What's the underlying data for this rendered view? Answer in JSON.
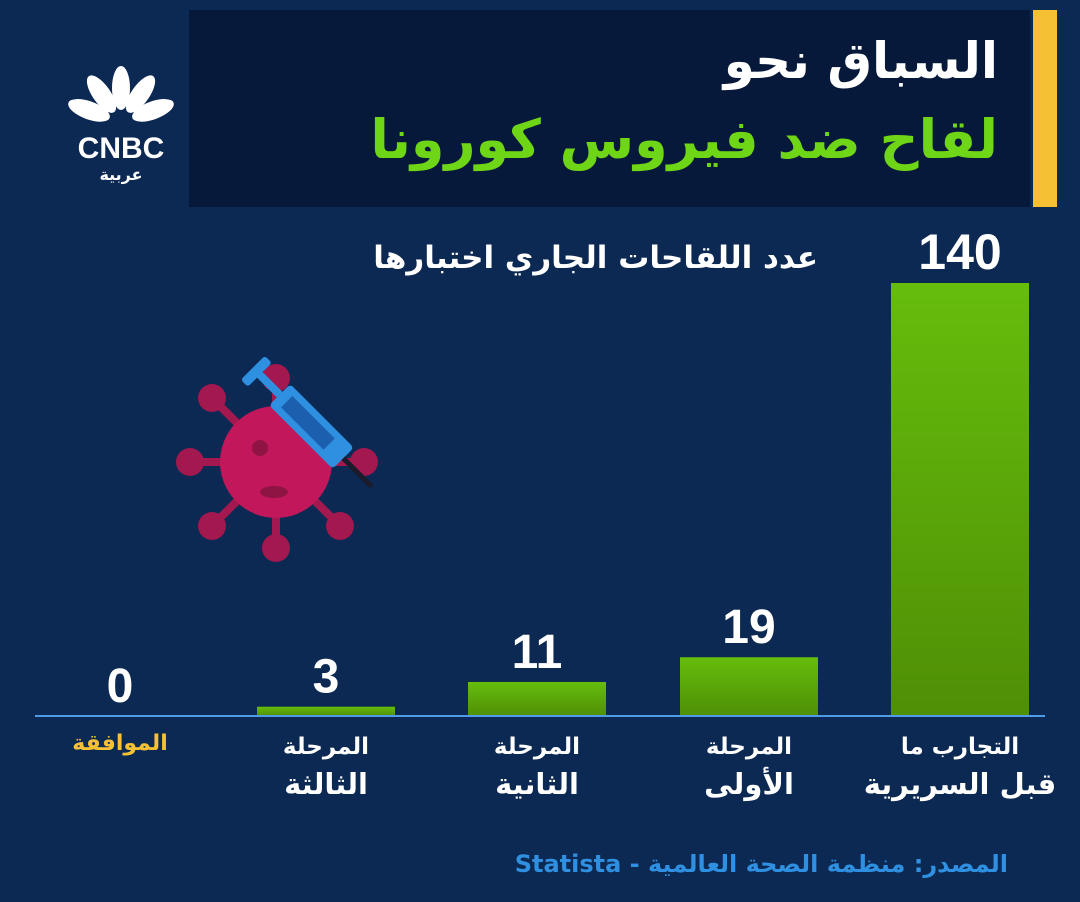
{
  "header": {
    "title_line1": "السباق نحو",
    "title_line2": "لقاح ضد فيروس كورونا"
  },
  "logo": {
    "brand": "CNBC",
    "sub": "عربية"
  },
  "colors": {
    "background": "#0c2954",
    "header_bg": "#07193a",
    "accent": "#f6c035",
    "bar_green": "#5fb40b",
    "title_green": "#6ed617",
    "approval_label": "#f6c035",
    "source_blue": "#2f8fe0"
  },
  "chart_data": {
    "type": "bar",
    "title": "عدد اللقاحات الجاري اختبارها",
    "categories": [
      [
        "التجارب ما",
        "قبل السريرية"
      ],
      [
        "المرحلة",
        "الأولى"
      ],
      [
        "المرحلة",
        "الثانية"
      ],
      [
        "المرحلة",
        "الثالثة"
      ],
      [
        "الموافقة"
      ]
    ],
    "values": [
      140,
      19,
      11,
      3,
      0
    ],
    "ylim": [
      0,
      140
    ],
    "grid": false,
    "legend": "none"
  },
  "source": "المصدر: منظمة الصحة العالمية - Statista",
  "illustration": {
    "icon": "virus-syringe-icon"
  }
}
